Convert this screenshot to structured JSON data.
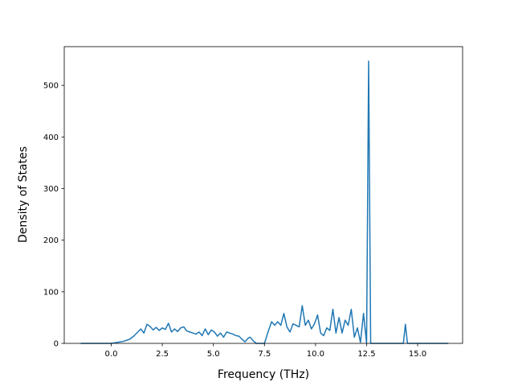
{
  "chart_data": {
    "type": "line",
    "title": "",
    "xlabel": "Frequency (THz)",
    "ylabel": "Density of States",
    "xlim": [
      -2.3,
      17.2
    ],
    "ylim": [
      0,
      575
    ],
    "xticks": [
      0.0,
      2.5,
      5.0,
      7.5,
      10.0,
      12.5,
      15.0
    ],
    "xtick_labels": [
      "0.0",
      "2.5",
      "5.0",
      "7.5",
      "10.0",
      "12.5",
      "15.0"
    ],
    "yticks": [
      0,
      100,
      200,
      300,
      400,
      500
    ],
    "ytick_labels": [
      "0",
      "100",
      "200",
      "300",
      "400",
      "500"
    ],
    "grid": false,
    "legend": "none",
    "series": [
      {
        "color": "#1f77b4",
        "x": [
          -1.5,
          -1.0,
          -0.5,
          0.0,
          0.3,
          0.6,
          0.9,
          1.1,
          1.3,
          1.45,
          1.6,
          1.75,
          1.9,
          2.05,
          2.2,
          2.35,
          2.5,
          2.65,
          2.8,
          2.95,
          3.1,
          3.25,
          3.4,
          3.55,
          3.7,
          3.85,
          4.0,
          4.15,
          4.3,
          4.45,
          4.6,
          4.75,
          4.9,
          5.05,
          5.2,
          5.35,
          5.5,
          5.65,
          5.8,
          5.95,
          6.1,
          6.25,
          6.4,
          6.55,
          6.7,
          6.8,
          6.95,
          7.1,
          7.3,
          7.5,
          7.7,
          7.85,
          8.0,
          8.15,
          8.3,
          8.45,
          8.6,
          8.75,
          8.9,
          9.05,
          9.2,
          9.35,
          9.5,
          9.65,
          9.8,
          9.95,
          10.1,
          10.25,
          10.4,
          10.55,
          10.7,
          10.85,
          11.0,
          11.15,
          11.3,
          11.45,
          11.6,
          11.75,
          11.9,
          12.05,
          12.2,
          12.35,
          12.5,
          12.6,
          12.7,
          12.75,
          12.8,
          12.9,
          13.0,
          13.5,
          14.0,
          14.3,
          14.4,
          14.5,
          14.6,
          14.7,
          15.0,
          16.0,
          16.5
        ],
        "y": [
          0,
          0,
          0,
          0,
          2,
          4,
          8,
          14,
          22,
          28,
          20,
          37,
          33,
          26,
          31,
          25,
          30,
          27,
          39,
          22,
          28,
          23,
          30,
          32,
          24,
          22,
          20,
          18,
          22,
          15,
          28,
          17,
          26,
          22,
          14,
          20,
          12,
          22,
          20,
          18,
          15,
          14,
          8,
          3,
          10,
          12,
          5,
          0,
          0,
          0,
          25,
          42,
          35,
          42,
          35,
          58,
          32,
          22,
          38,
          35,
          32,
          73,
          35,
          45,
          28,
          38,
          55,
          20,
          15,
          30,
          25,
          66,
          20,
          50,
          20,
          45,
          35,
          66,
          12,
          30,
          2,
          58,
          0,
          547,
          0,
          0,
          0,
          0,
          0,
          0,
          0,
          0,
          37,
          0,
          0,
          0,
          0,
          0,
          0
        ]
      }
    ]
  }
}
